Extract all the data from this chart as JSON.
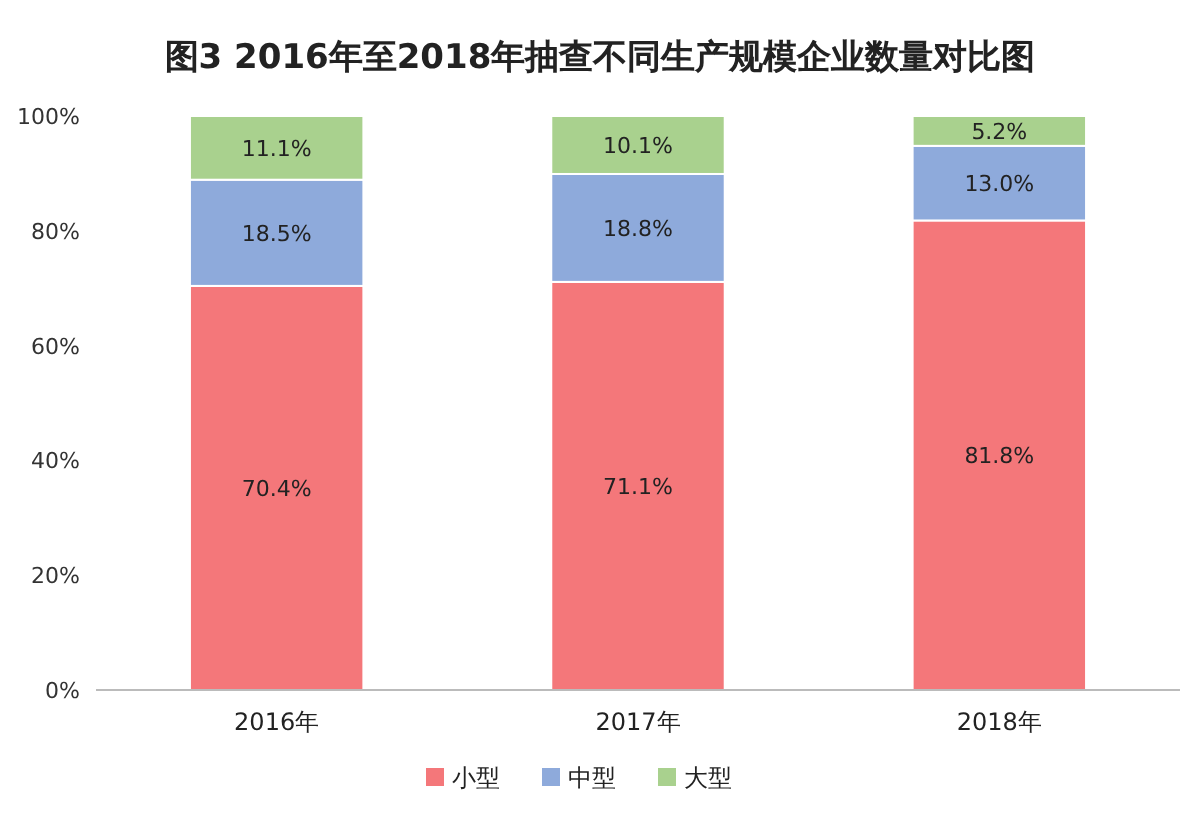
{
  "chart_data": {
    "type": "bar",
    "stacked": true,
    "title": "图3 2016年至2018年抽查不同生产规模企业数量对比图",
    "categories": [
      "2016年",
      "2017年",
      "2018年"
    ],
    "series": [
      {
        "name": "小型",
        "color": "#f4777a",
        "values": [
          70.4,
          71.1,
          81.8
        ],
        "value_labels": [
          "70.4%",
          "71.1%",
          "81.8%"
        ]
      },
      {
        "name": "中型",
        "color": "#8eaadb",
        "values": [
          18.5,
          18.8,
          13.0
        ],
        "value_labels": [
          "18.5%",
          "18.8%",
          "13.0%"
        ]
      },
      {
        "name": "大型",
        "color": "#a9d18e",
        "values": [
          11.1,
          10.1,
          5.2
        ],
        "value_labels": [
          "11.1%",
          "10.1%",
          "5.2%"
        ]
      }
    ],
    "ylim": [
      0,
      100
    ],
    "yticks": [
      {
        "value": 0,
        "label": "0%"
      },
      {
        "value": 20,
        "label": "20%"
      },
      {
        "value": 40,
        "label": "40%"
      },
      {
        "value": 60,
        "label": "60%"
      },
      {
        "value": 80,
        "label": "80%"
      },
      {
        "value": 100,
        "label": "100%"
      }
    ],
    "grid": false,
    "legend": "bottom"
  }
}
